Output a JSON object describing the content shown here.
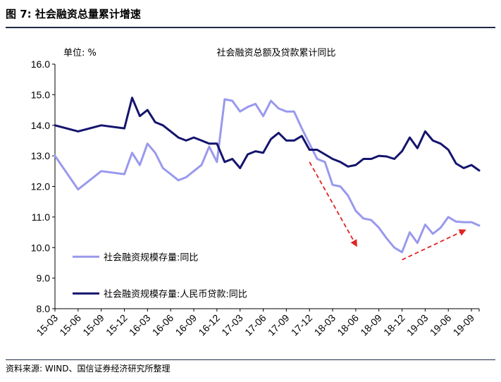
{
  "figure": {
    "title": "图 7:  社会融资总量累计增速",
    "source": "资料来源: WIND、国信证券经济研究所整理"
  },
  "colors": {
    "series1": "#9999ee",
    "series2": "#14146e",
    "arrow": "#e32222",
    "rule": "#1f2a44"
  },
  "chart_data": {
    "type": "line",
    "title": "社会融资总额及贷款累计同比",
    "ylabel": "单位: %",
    "xlabel": "",
    "ylim": [
      8.0,
      16.0
    ],
    "y_ticks": [
      "16.0",
      "15.0",
      "14.0",
      "13.0",
      "12.0",
      "11.0",
      "10.0",
      "9.0",
      "8.0"
    ],
    "x_labels": [
      "15-03",
      "15-06",
      "15-09",
      "15-12",
      "16-03",
      "16-06",
      "16-09",
      "16-12",
      "17-03",
      "17-06",
      "17-09",
      "17-12",
      "18-03",
      "18-06",
      "18-09",
      "18-12",
      "19-03",
      "19-06",
      "19-09"
    ],
    "legend_position": "lower-left",
    "grid": false,
    "series": [
      {
        "name": "社会融资规模存量:同比",
        "x": [
          "15-03",
          "15-06",
          "15-09",
          "15-12",
          "16-01",
          "16-02",
          "16-03",
          "16-04",
          "16-05",
          "16-06",
          "16-07",
          "16-08",
          "16-09",
          "16-10",
          "16-11",
          "16-12",
          "17-01",
          "17-02",
          "17-03",
          "17-04",
          "17-05",
          "17-06",
          "17-07",
          "17-08",
          "17-09",
          "17-10",
          "17-11",
          "17-12",
          "18-01",
          "18-02",
          "18-03",
          "18-04",
          "18-05",
          "18-06",
          "18-07",
          "18-08",
          "18-09",
          "18-10",
          "18-11",
          "18-12",
          "19-01",
          "19-02",
          "19-03",
          "19-04",
          "19-05",
          "19-06",
          "19-07",
          "19-08",
          "19-09",
          "19-10"
        ],
        "values": [
          13.0,
          11.9,
          12.5,
          12.4,
          13.1,
          12.7,
          13.4,
          13.1,
          12.6,
          12.4,
          12.2,
          12.3,
          12.5,
          12.7,
          13.3,
          12.8,
          14.85,
          14.8,
          14.45,
          14.6,
          14.7,
          14.3,
          14.8,
          14.55,
          14.45,
          14.45,
          13.9,
          13.4,
          12.9,
          12.8,
          12.05,
          12.0,
          11.7,
          11.2,
          10.95,
          10.9,
          10.65,
          10.3,
          10.0,
          9.85,
          10.5,
          10.15,
          10.75,
          10.45,
          10.65,
          11.0,
          10.85,
          10.83,
          10.83,
          10.72
        ]
      },
      {
        "name": "社会融资规模存量:人民币贷款:同比",
        "x": [
          "15-03",
          "15-06",
          "15-09",
          "15-12",
          "16-01",
          "16-02",
          "16-03",
          "16-04",
          "16-05",
          "16-06",
          "16-07",
          "16-08",
          "16-09",
          "16-10",
          "16-11",
          "16-12",
          "17-01",
          "17-02",
          "17-03",
          "17-04",
          "17-05",
          "17-06",
          "17-07",
          "17-08",
          "17-09",
          "17-10",
          "17-11",
          "17-12",
          "18-01",
          "18-02",
          "18-03",
          "18-04",
          "18-05",
          "18-06",
          "18-07",
          "18-08",
          "18-09",
          "18-10",
          "18-11",
          "18-12",
          "19-01",
          "19-02",
          "19-03",
          "19-04",
          "19-05",
          "19-06",
          "19-07",
          "19-08",
          "19-09",
          "19-10"
        ],
        "values": [
          14.0,
          13.8,
          14.0,
          13.9,
          14.9,
          14.3,
          14.5,
          14.1,
          14.0,
          13.8,
          13.6,
          13.5,
          13.6,
          13.5,
          13.4,
          13.4,
          12.8,
          12.9,
          12.6,
          13.05,
          13.15,
          13.1,
          13.55,
          13.75,
          13.5,
          13.5,
          13.65,
          13.2,
          13.2,
          13.05,
          12.9,
          12.8,
          12.65,
          12.7,
          12.9,
          12.9,
          13.0,
          12.98,
          12.9,
          13.15,
          13.6,
          13.25,
          13.8,
          13.5,
          13.4,
          13.2,
          12.75,
          12.6,
          12.7,
          12.52
        ]
      }
    ],
    "annotations": [
      {
        "type": "arrow",
        "from": [
          "17-12",
          12.8
        ],
        "to": [
          "18-06",
          10.1
        ],
        "meaning": "decline"
      },
      {
        "type": "arrow",
        "from": [
          "18-12",
          9.6
        ],
        "to": [
          "19-08",
          10.55
        ],
        "meaning": "rebound"
      }
    ]
  }
}
